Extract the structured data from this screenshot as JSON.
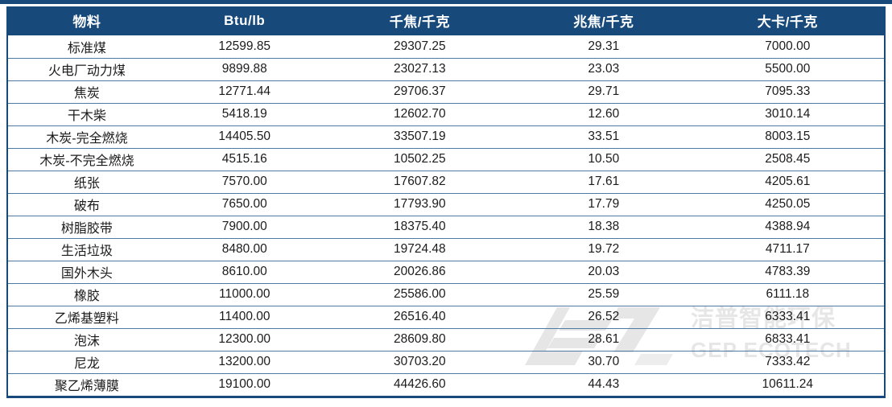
{
  "chart_data": {
    "type": "table",
    "title": "",
    "columns": [
      "物料",
      "Btu/lb",
      "千焦/千克",
      "兆焦/千克",
      "大卡/千克"
    ],
    "rows": [
      [
        "标准煤",
        "12599.85",
        "29307.25",
        "29.31",
        "7000.00"
      ],
      [
        "火电厂动力煤",
        "9899.88",
        "23027.13",
        "23.03",
        "5500.00"
      ],
      [
        "焦炭",
        "12771.44",
        "29706.37",
        "29.71",
        "7095.33"
      ],
      [
        "干木柴",
        "5418.19",
        "12602.70",
        "12.60",
        "3010.14"
      ],
      [
        "木炭-完全燃烧",
        "14405.50",
        "33507.19",
        "33.51",
        "8003.15"
      ],
      [
        "木炭-不完全燃烧",
        "4515.16",
        "10502.25",
        "10.50",
        "2508.45"
      ],
      [
        "纸张",
        "7570.00",
        "17607.82",
        "17.61",
        "4205.61"
      ],
      [
        "破布",
        "7650.00",
        "17793.90",
        "17.79",
        "4250.05"
      ],
      [
        "树脂胶带",
        "7900.00",
        "18375.40",
        "18.38",
        "4388.94"
      ],
      [
        "生活垃圾",
        "8480.00",
        "19724.48",
        "19.72",
        "4711.17"
      ],
      [
        "国外木头",
        "8610.00",
        "20026.86",
        "20.03",
        "4783.39"
      ],
      [
        "橡胶",
        "11000.00",
        "25586.00",
        "25.59",
        "6111.18"
      ],
      [
        "乙烯基塑料",
        "11400.00",
        "26516.40",
        "26.52",
        "6333.41"
      ],
      [
        "泡沫",
        "12300.00",
        "28609.80",
        "28.61",
        "6833.41"
      ],
      [
        "尼龙",
        "13200.00",
        "30703.20",
        "30.70",
        "7333.42"
      ],
      [
        "聚乙烯薄膜",
        "19100.00",
        "44426.60",
        "44.43",
        "10611.24"
      ]
    ]
  },
  "watermark": {
    "line1": "洁普智能环保",
    "line2": "GEP ECOTECH"
  },
  "colors": {
    "header_bg": "#17497B",
    "row_separator": "#4c7aa5",
    "text": "#1b1b1b",
    "watermark": "#e6e6e6"
  }
}
